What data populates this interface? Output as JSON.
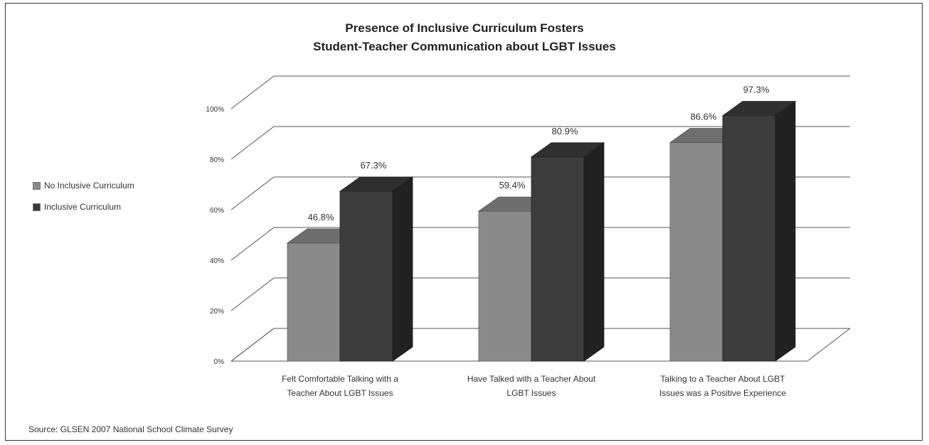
{
  "chart_data": {
    "type": "bar",
    "title_lines": [
      "Presence of Inclusive Curriculum Fosters",
      "Student-Teacher Communication about LGBT Issues"
    ],
    "categories": [
      [
        "Felt Comfortable Talking with a",
        "Teacher About LGBT Issues"
      ],
      [
        "Have Talked with a Teacher About",
        "LGBT Issues"
      ],
      [
        "Talking to a Teacher About LGBT",
        "Issues was a Positive Experience"
      ]
    ],
    "series": [
      {
        "name": "No Inclusive Curriculum",
        "values": [
          46.8,
          59.4,
          86.6
        ],
        "labels": [
          "46.8%",
          "59.4%",
          "86.6%"
        ],
        "color": "#8a8a8a"
      },
      {
        "name": "Inclusive Curriculum",
        "values": [
          67.3,
          80.9,
          97.3
        ],
        "labels": [
          "67.3%",
          "80.9%",
          "97.3%"
        ],
        "color": "#3c3c3c"
      }
    ],
    "yticks": [
      "0%",
      "20%",
      "40%",
      "60%",
      "80%",
      "100%"
    ],
    "ylim": [
      0,
      100
    ],
    "grid": true,
    "legend": "left",
    "style": "3d-column"
  },
  "source": "Source: GLSEN 2007 National School Climate Survey"
}
